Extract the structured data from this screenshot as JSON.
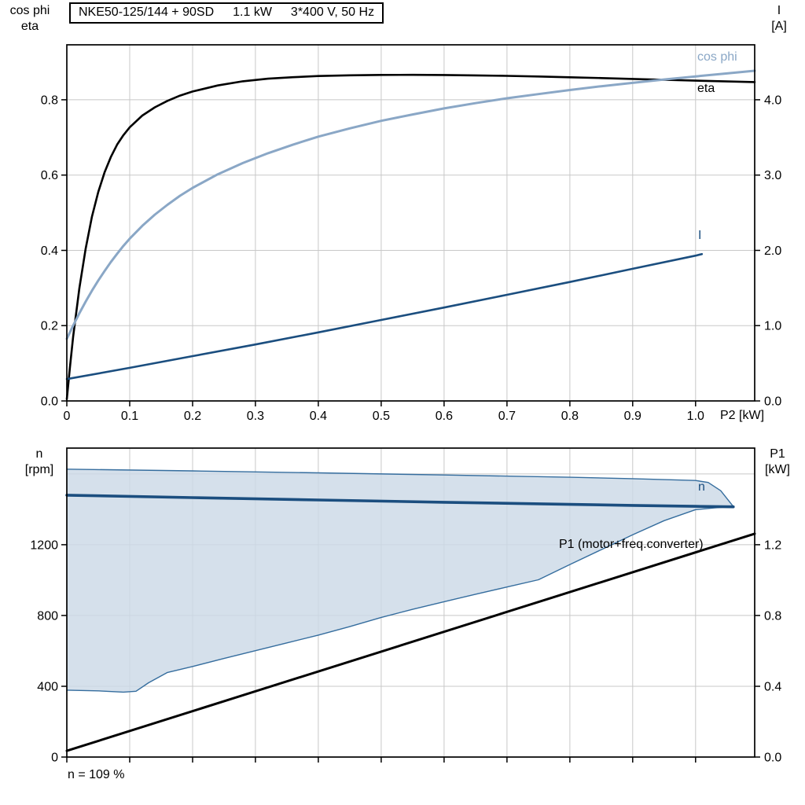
{
  "title_box": {
    "model": "NKE50-125/144 + 90SD",
    "power": "1.1 kW",
    "supply": "3*400 V, 50 Hz"
  },
  "colors": {
    "eta": "#000000",
    "cos_phi": "#8aa7c6",
    "current": "#1b4e7f",
    "speed": "#1b4e7f",
    "p1": "#000000",
    "band_fill": "#ccd9e6",
    "band_edge": "#356d9e",
    "grid": "#c8c8c8",
    "frame": "#000000"
  },
  "top_chart": {
    "axis_left": {
      "line1": "cos phi",
      "line2": "eta"
    },
    "axis_right": {
      "line1": "I",
      "line2": "[A]"
    },
    "x_title": "P2 [kW]",
    "curve_labels": {
      "cos_phi": "cos phi",
      "eta": "eta",
      "current": "I"
    }
  },
  "bottom_chart": {
    "axis_left": {
      "line1": "n",
      "line2": "[rpm]"
    },
    "axis_right": {
      "line1": "P1",
      "line2": "[kW]"
    },
    "curve_labels": {
      "speed": "n",
      "p1": "P1 (motor+freq.converter)"
    },
    "footnote": "n = 109 %"
  },
  "chart_data": [
    {
      "type": "line",
      "title": "NKE50-125/144 + 90SD  1.1 kW  3*400 V, 50 Hz",
      "xlabel": "P2 [kW]",
      "ylabel_left": "cos phi / eta",
      "ylabel_right": "I [A]",
      "xlim": [
        0,
        1.094
      ],
      "ylim_left": [
        0,
        0.946
      ],
      "ylim_right": [
        0,
        4.73
      ],
      "xticks": [
        0,
        0.1,
        0.2,
        0.3,
        0.4,
        0.5,
        0.6,
        0.7,
        0.8,
        0.9,
        1.0
      ],
      "xtick_labels": [
        "0",
        "0.1",
        "0.2",
        "0.3",
        "0.4",
        "0.5",
        "0.6",
        "0.7",
        "0.8",
        "0.9",
        "1.0"
      ],
      "yticks_left": [
        0,
        0.2,
        0.4,
        0.6,
        0.8
      ],
      "ytick_labels_left": [
        "0.0",
        "0.2",
        "0.4",
        "0.6",
        "0.8"
      ],
      "yticks_right": [
        0,
        1,
        2,
        3,
        4
      ],
      "ytick_labels_right": [
        "0.0",
        "1.0",
        "2.0",
        "3.0",
        "4.0"
      ],
      "grid": true,
      "legend_position": "inline-right",
      "series": [
        {
          "name": "eta",
          "axis": "left",
          "color_key": "eta",
          "width": 2.6,
          "points": [
            [
              0,
              0.005
            ],
            [
              0.005,
              0.09
            ],
            [
              0.01,
              0.17
            ],
            [
              0.02,
              0.3
            ],
            [
              0.03,
              0.405
            ],
            [
              0.04,
              0.49
            ],
            [
              0.05,
              0.555
            ],
            [
              0.06,
              0.607
            ],
            [
              0.07,
              0.648
            ],
            [
              0.08,
              0.681
            ],
            [
              0.09,
              0.706
            ],
            [
              0.1,
              0.727
            ],
            [
              0.12,
              0.758
            ],
            [
              0.14,
              0.78
            ],
            [
              0.16,
              0.797
            ],
            [
              0.18,
              0.811
            ],
            [
              0.2,
              0.822
            ],
            [
              0.24,
              0.838
            ],
            [
              0.28,
              0.849
            ],
            [
              0.32,
              0.856
            ],
            [
              0.36,
              0.86
            ],
            [
              0.4,
              0.863
            ],
            [
              0.45,
              0.865
            ],
            [
              0.5,
              0.866
            ],
            [
              0.55,
              0.8662
            ],
            [
              0.6,
              0.8658
            ],
            [
              0.65,
              0.8648
            ],
            [
              0.7,
              0.8635
            ],
            [
              0.75,
              0.8618
            ],
            [
              0.8,
              0.8598
            ],
            [
              0.85,
              0.8576
            ],
            [
              0.9,
              0.8553
            ],
            [
              0.95,
              0.853
            ],
            [
              1.0,
              0.8508
            ],
            [
              1.05,
              0.8487
            ],
            [
              1.094,
              0.847
            ]
          ]
        },
        {
          "name": "cos phi",
          "axis": "left",
          "color_key": "cos_phi",
          "width": 3,
          "points": [
            [
              0,
              0.165
            ],
            [
              0.01,
              0.2
            ],
            [
              0.02,
              0.233
            ],
            [
              0.03,
              0.264
            ],
            [
              0.04,
              0.293
            ],
            [
              0.05,
              0.32
            ],
            [
              0.06,
              0.345
            ],
            [
              0.07,
              0.369
            ],
            [
              0.08,
              0.391
            ],
            [
              0.09,
              0.412
            ],
            [
              0.1,
              0.431
            ],
            [
              0.12,
              0.465
            ],
            [
              0.14,
              0.495
            ],
            [
              0.16,
              0.521
            ],
            [
              0.18,
              0.545
            ],
            [
              0.2,
              0.566
            ],
            [
              0.24,
              0.602
            ],
            [
              0.28,
              0.632
            ],
            [
              0.32,
              0.658
            ],
            [
              0.36,
              0.681
            ],
            [
              0.4,
              0.702
            ],
            [
              0.45,
              0.724
            ],
            [
              0.5,
              0.744
            ],
            [
              0.55,
              0.761
            ],
            [
              0.6,
              0.777
            ],
            [
              0.65,
              0.791
            ],
            [
              0.7,
              0.804
            ],
            [
              0.75,
              0.815
            ],
            [
              0.8,
              0.826
            ],
            [
              0.85,
              0.836
            ],
            [
              0.9,
              0.845
            ],
            [
              0.95,
              0.854
            ],
            [
              1.0,
              0.862
            ],
            [
              1.05,
              0.87
            ],
            [
              1.094,
              0.877
            ]
          ]
        },
        {
          "name": "I",
          "axis": "right",
          "color_key": "current",
          "width": 2.6,
          "points": [
            [
              0,
              0.29
            ],
            [
              0.1,
              0.44
            ],
            [
              0.2,
              0.595
            ],
            [
              0.3,
              0.75
            ],
            [
              0.4,
              0.91
            ],
            [
              0.5,
              1.075
            ],
            [
              0.6,
              1.24
            ],
            [
              0.7,
              1.41
            ],
            [
              0.8,
              1.58
            ],
            [
              0.9,
              1.755
            ],
            [
              1.0,
              1.93
            ],
            [
              1.01,
              1.95
            ]
          ]
        }
      ]
    },
    {
      "type": "line",
      "title": "",
      "xlabel": "",
      "ylabel_left": "n [rpm]",
      "ylabel_right": "P1 [kW]",
      "xlim": [
        0,
        1.094
      ],
      "ylim_left": [
        0,
        1746
      ],
      "ylim_right": [
        0,
        1.746
      ],
      "xticks": [
        0,
        0.1,
        0.2,
        0.3,
        0.4,
        0.5,
        0.6,
        0.7,
        0.8,
        0.9,
        1.0
      ],
      "xtick_labels": [],
      "yticks_left": [
        0,
        400,
        800,
        1200
      ],
      "ytick_labels_left": [
        "0",
        "400",
        "800",
        "1200"
      ],
      "grid_y": [
        400,
        800,
        1200,
        1600
      ],
      "yticks_right": [
        0,
        0.4,
        0.8,
        1.2
      ],
      "ytick_labels_right": [
        "0.0",
        "0.4",
        "0.8",
        "1.2"
      ],
      "grid": true,
      "annotation": "n = 109 %",
      "band": {
        "name": "speed-control-range",
        "upper": [
          [
            0,
            1627
          ],
          [
            0.2,
            1617
          ],
          [
            0.4,
            1606
          ],
          [
            0.6,
            1594
          ],
          [
            0.8,
            1581
          ],
          [
            0.9,
            1573
          ],
          [
            1.0,
            1563
          ],
          [
            1.02,
            1552
          ],
          [
            1.04,
            1505
          ],
          [
            1.06,
            1416
          ]
        ],
        "lower": [
          [
            0,
            378
          ],
          [
            0.05,
            374
          ],
          [
            0.09,
            367
          ],
          [
            0.11,
            372
          ],
          [
            0.13,
            420
          ],
          [
            0.16,
            478
          ],
          [
            0.2,
            512
          ],
          [
            0.25,
            557
          ],
          [
            0.3,
            601
          ],
          [
            0.35,
            645
          ],
          [
            0.4,
            689
          ],
          [
            0.45,
            737
          ],
          [
            0.5,
            789
          ],
          [
            0.55,
            835
          ],
          [
            0.6,
            878
          ],
          [
            0.65,
            920
          ],
          [
            0.7,
            961
          ],
          [
            0.75,
            1002
          ],
          [
            0.8,
            1088
          ],
          [
            0.85,
            1172
          ],
          [
            0.9,
            1256
          ],
          [
            0.95,
            1336
          ],
          [
            1.0,
            1398
          ],
          [
            1.03,
            1408
          ],
          [
            1.06,
            1416
          ]
        ]
      },
      "series": [
        {
          "name": "P1 (motor+freq.converter)",
          "axis": "right",
          "color_key": "p1",
          "width": 3,
          "points": [
            [
              0,
              0.035
            ],
            [
              1.094,
              1.262
            ]
          ]
        },
        {
          "name": "n",
          "axis": "left",
          "color_key": "speed",
          "width": 3.6,
          "points": [
            [
              0,
              1480
            ],
            [
              0.2,
              1466
            ],
            [
              0.4,
              1453
            ],
            [
              0.6,
              1440
            ],
            [
              0.8,
              1428
            ],
            [
              0.9,
              1422
            ],
            [
              1.0,
              1417
            ],
            [
              1.06,
              1414
            ]
          ]
        }
      ]
    }
  ]
}
